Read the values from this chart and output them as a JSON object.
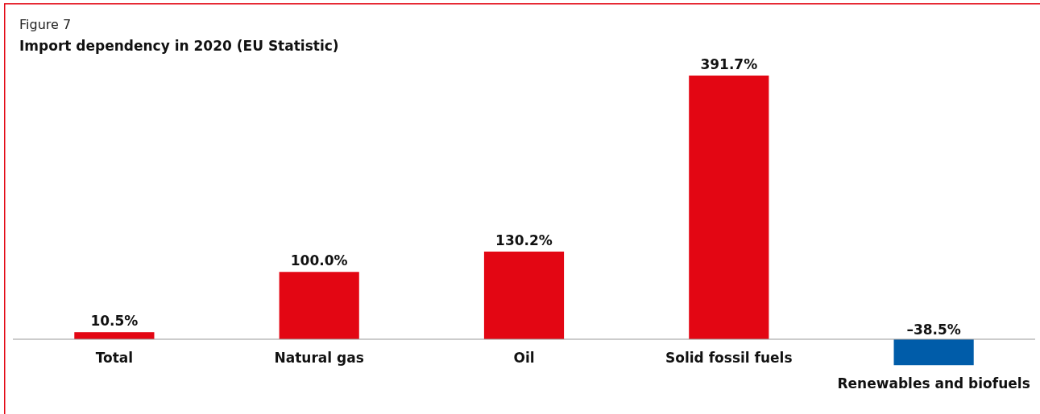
{
  "chart_data": {
    "type": "bar",
    "title": "Import dependency in 2020 (EU Statistic)",
    "annotations": [
      "Figure 7"
    ],
    "categories": [
      "Total",
      "Natural gas",
      "Oil",
      "Solid fossil fuels",
      "Renewables and biofuels"
    ],
    "values": [
      10.5,
      100.0,
      130.2,
      391.7,
      -38.5
    ],
    "colors": [
      "#e30613",
      "#e30613",
      "#e30613",
      "#e30613",
      "#005ca9"
    ],
    "value_labels": [
      "10.5%",
      "100.0%",
      "130.2%",
      "391.7%",
      "–38.5%"
    ]
  }
}
